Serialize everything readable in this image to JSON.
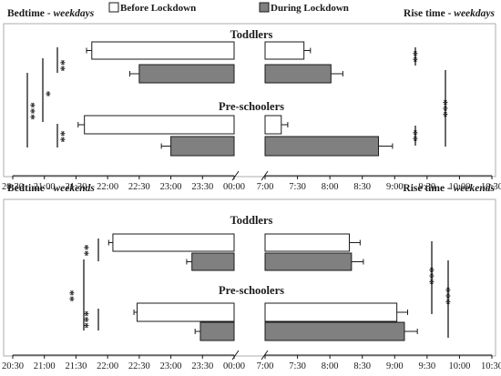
{
  "legend": [
    {
      "label": "Before Lockdown",
      "fill": "#ffffff"
    },
    {
      "label": "During Lockdown",
      "fill": "#808080"
    }
  ],
  "colors": {
    "before": "#ffffff",
    "during": "#808080",
    "stroke": "#1a1a1a"
  },
  "chart_data": [
    {
      "type": "bar",
      "orientation": "horizontal",
      "title": "Bedtime - weekdays",
      "title_parts": [
        "Bedtime - ",
        "weekdays"
      ],
      "x_ticks": [
        "20:30",
        "21:00",
        "21:30",
        "22:00",
        "22:30",
        "23:00",
        "23:30",
        "00:00"
      ],
      "xlim": [
        "20:30",
        "00:00"
      ],
      "groups": [
        {
          "name": "Toddlers",
          "before": {
            "value": "21:45",
            "error": "00:05"
          },
          "during": {
            "value": "22:30",
            "error": "00:09"
          }
        },
        {
          "name": "Pre-schoolers",
          "before": {
            "value": "21:38",
            "error": "00:06"
          },
          "during": {
            "value": "23:00",
            "error": "00:09"
          }
        }
      ],
      "significance": [
        {
          "label": "**",
          "between": "Toddlers before vs during"
        },
        {
          "label": "*",
          "between": "Toddlers vs Pre-schoolers"
        },
        {
          "label": "***",
          "between": "Toddlers vs Pre-schoolers"
        },
        {
          "label": "**",
          "between": "Pre-schoolers before vs during"
        }
      ]
    },
    {
      "type": "bar",
      "orientation": "horizontal",
      "title": "Rise time - weekdays",
      "title_parts": [
        "Rise time - ",
        "weekdays"
      ],
      "x_ticks": [
        "7:00",
        "7:30",
        "8:00",
        "8:30",
        "9:00",
        "9:30",
        "10:00",
        "10:30"
      ],
      "xlim": [
        "7:00",
        "10:30"
      ],
      "groups": [
        {
          "name": "Toddlers",
          "before": {
            "value": "7:36",
            "error": "00:06"
          },
          "during": {
            "value": "8:01",
            "error": "00:11"
          }
        },
        {
          "name": "Pre-schoolers",
          "before": {
            "value": "7:15",
            "error": "00:06"
          },
          "during": {
            "value": "8:45",
            "error": "00:13"
          }
        }
      ],
      "significance": [
        {
          "label": "**",
          "between": "Toddlers before vs during"
        },
        {
          "label": "**",
          "between": "Pre-schoolers before vs during"
        },
        {
          "label": "***",
          "between": "Toddlers vs Pre-schoolers"
        }
      ]
    },
    {
      "type": "bar",
      "orientation": "horizontal",
      "title": "Bedtime - weekends",
      "title_parts": [
        "Bedtime - ",
        "weekends"
      ],
      "x_ticks": [
        "20:30",
        "21:00",
        "21:30",
        "22:00",
        "22:30",
        "23:00",
        "23:30",
        "00:00"
      ],
      "xlim": [
        "20:30",
        "00:00"
      ],
      "groups": [
        {
          "name": "Toddlers",
          "before": {
            "value": "22:05",
            "error": "00:04"
          },
          "during": {
            "value": "23:20",
            "error": "00:05"
          }
        },
        {
          "name": "Pre-schoolers",
          "before": {
            "value": "22:28",
            "error": "00:03"
          },
          "during": {
            "value": "23:28",
            "error": "00:05"
          }
        }
      ],
      "significance": [
        {
          "label": "**",
          "between": "Toddlers before vs during"
        },
        {
          "label": "**",
          "between": "Toddlers vs Pre-schoolers"
        },
        {
          "label": "***",
          "between": "Pre-schoolers before vs during"
        }
      ]
    },
    {
      "type": "bar",
      "orientation": "horizontal",
      "title": "Rise time - weekends",
      "title_parts": [
        "Rise time - ",
        "weekends"
      ],
      "x_ticks": [
        "7:00",
        "7:30",
        "8:00",
        "8:30",
        "9:00",
        "9:30",
        "10:00",
        "10:30"
      ],
      "xlim": [
        "7:00",
        "10:30"
      ],
      "groups": [
        {
          "name": "Toddlers",
          "before": {
            "value": "8:18",
            "error": "00:10"
          },
          "during": {
            "value": "8:20",
            "error": "00:11"
          }
        },
        {
          "name": "Pre-schoolers",
          "before": {
            "value": "9:02",
            "error": "00:10"
          },
          "during": {
            "value": "9:09",
            "error": "00:12"
          }
        }
      ],
      "significance": [
        {
          "label": "***",
          "between": "Toddlers vs Pre-schoolers"
        },
        {
          "label": "***",
          "between": "Toddlers vs Pre-schoolers"
        }
      ]
    }
  ]
}
